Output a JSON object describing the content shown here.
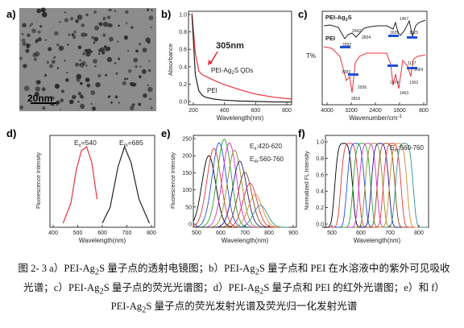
{
  "panels": {
    "a": {
      "label": "a)",
      "scalebar": "20nm"
    },
    "b": {
      "label": "b)",
      "annotation": "305nm",
      "curve1": "PEI-Ag$_2$S QDs",
      "curve2": "PEI",
      "ylabel": "Absorbance",
      "xlabel": "Wavelength(nm)",
      "xticks": [
        "200",
        "400",
        "600",
        "800"
      ],
      "yticks": [
        "0.0",
        "0.2",
        "0.4",
        "0.6",
        "0.8",
        "1.0"
      ]
    },
    "c": {
      "label": "c)",
      "top_label": "PEI-Ag$_2$S",
      "bottom_label": "PEI",
      "ylabel": "T%",
      "xlabel": "Wavenumber/cm$^{-1}$",
      "xticks": [
        "4000",
        "3200",
        "2400",
        "1600",
        "800"
      ],
      "top_peaks": [
        "3392",
        "2942",
        "2834",
        "1467",
        "1629",
        "1123"
      ],
      "bottom_peaks": [
        "3283",
        "2819",
        "2936",
        "1574",
        "1463",
        "1117",
        "1064",
        "1302"
      ]
    },
    "d": {
      "label": "d)",
      "ex": "E$_x$=540",
      "em": "E$_m$=685",
      "ylabel": "Fluorescence Intensity",
      "xlabel": "Wavelength(nm)",
      "xticks": [
        "400",
        "500",
        "600",
        "700",
        "800"
      ]
    },
    "e": {
      "label": "e)",
      "ex": "E$_x$:420-620",
      "em": "E$_m$:560-760",
      "ylabel": "Fluorescence Intensity",
      "xlabel": "Wavelength(nm)",
      "xticks": [
        "500",
        "600",
        "700",
        "800",
        "900"
      ],
      "yticks": [
        "0",
        "50",
        "100",
        "150",
        "200",
        "250"
      ]
    },
    "f": {
      "label": "f)",
      "em": "E$_m$:560-760",
      "ylabel": "Normalized FL Intensity",
      "xlabel": "Wavelength(nm)",
      "xticks": [
        "500",
        "600",
        "700",
        "800"
      ],
      "yticks": [
        "0.0",
        "0.2",
        "0.4",
        "0.6",
        "0.8",
        "1.0"
      ]
    }
  },
  "caption": "图 2- 3 a）PEI-Ag2S 量子点的透射电镜图；b）PEI-Ag2S 量子点和 PEI 在水溶液中的紫外可见吸收光谱；c）PEI-Ag2S 量子点的荧光光谱图；d）PEI-Ag2S 量子点和 PEI 的红外光谱图；e）和 f）PEI-Ag2S 量子点的荧光发射光谱及荧光归一化发射光谱",
  "colors": {
    "red": "#e8323c",
    "black": "#222222",
    "blue": "#1f4fd8"
  },
  "chart_data": [
    {
      "panel": "b",
      "type": "line",
      "xlabel": "Wavelength(nm)",
      "ylabel": "Absorbance",
      "xlim": [
        200,
        800
      ],
      "ylim": [
        0,
        1.0
      ],
      "series": [
        {
          "name": "PEI-Ag2S QDs",
          "x": [
            220,
            240,
            260,
            280,
            305,
            350,
            400,
            500,
            600,
            700,
            800
          ],
          "y": [
            0.98,
            0.55,
            0.36,
            0.32,
            0.3,
            0.26,
            0.22,
            0.16,
            0.11,
            0.08,
            0.06
          ]
        },
        {
          "name": "PEI",
          "x": [
            220,
            240,
            260,
            280,
            300,
            350,
            400,
            500,
            600,
            700,
            800
          ],
          "y": [
            0.96,
            0.32,
            0.15,
            0.1,
            0.08,
            0.06,
            0.05,
            0.04,
            0.035,
            0.03,
            0.03
          ]
        }
      ]
    },
    {
      "panel": "d",
      "type": "line",
      "xlabel": "Wavelength(nm)",
      "ylabel": "Fluorescence Intensity",
      "xlim": [
        400,
        800
      ],
      "series": [
        {
          "name": "Ex=540",
          "x": [
            450,
            480,
            500,
            520,
            540,
            560,
            580
          ],
          "y": [
            0.05,
            0.3,
            0.7,
            0.95,
            1.0,
            0.8,
            0.35
          ]
        },
        {
          "name": "Em=685",
          "x": [
            600,
            630,
            660,
            685,
            710,
            740,
            780
          ],
          "y": [
            0.05,
            0.25,
            0.75,
            1.0,
            0.8,
            0.35,
            0.05
          ]
        }
      ]
    },
    {
      "panel": "e",
      "type": "line",
      "xlabel": "Wavelength(nm)",
      "ylabel": "Fluorescence Intensity",
      "xlim": [
        500,
        900
      ],
      "ylim": [
        0,
        250
      ],
      "peaks_x": [
        560,
        580,
        600,
        620,
        640,
        660,
        680,
        700,
        720,
        740,
        760
      ],
      "peaks_y": [
        195,
        215,
        230,
        240,
        230,
        210,
        180,
        150,
        120,
        90,
        60
      ]
    },
    {
      "panel": "f",
      "type": "line",
      "xlabel": "Wavelength(nm)",
      "ylabel": "Normalized FL Intensity",
      "xlim": [
        500,
        840
      ],
      "ylim": [
        0,
        1.0
      ],
      "peaks_x": [
        560,
        580,
        600,
        620,
        640,
        660,
        680,
        700,
        720,
        740,
        760
      ]
    }
  ]
}
